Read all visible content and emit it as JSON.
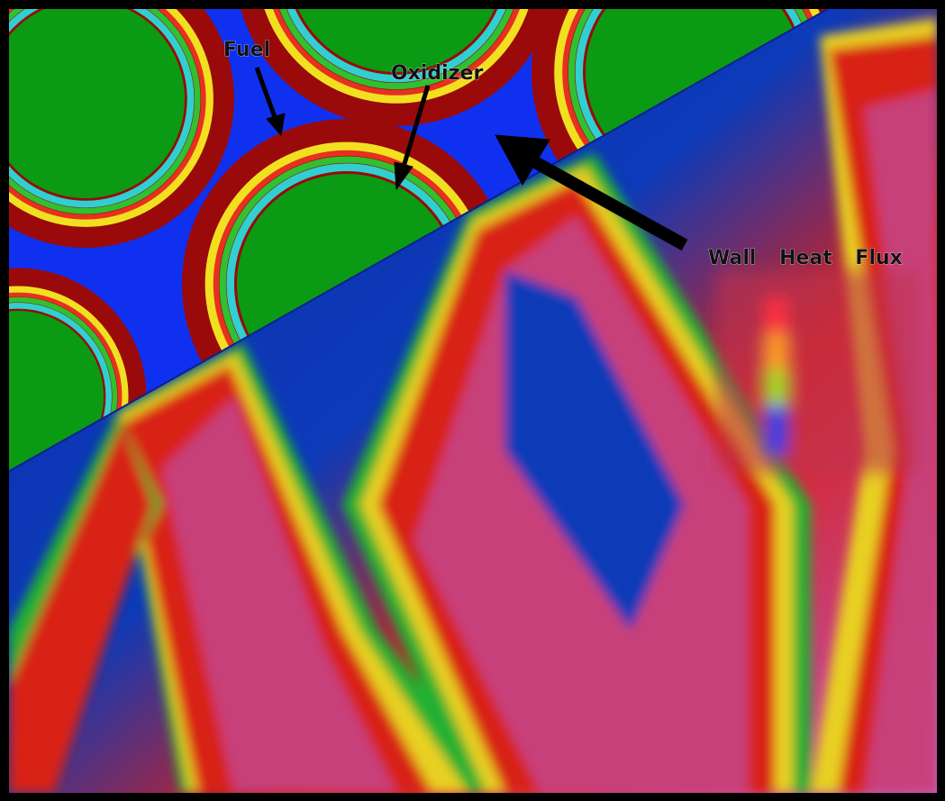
{
  "labels": {
    "fuel": "Fuel",
    "oxidizer": "Oxidizer",
    "wall_heat_flux": "Wall Heat Flux"
  }
}
